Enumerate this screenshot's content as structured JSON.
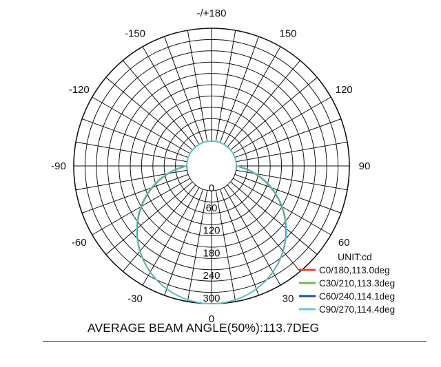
{
  "chart_data": {
    "type": "polar",
    "unit_label": "UNIT:cd",
    "angle_labels": [
      "-/+180",
      "-150",
      "150",
      "-120",
      "120",
      "-90",
      "90",
      "-60",
      "60",
      "-30",
      "30",
      "0"
    ],
    "radial_ticks": [
      0,
      60,
      120,
      180,
      240,
      300
    ],
    "rlim": [
      0,
      300
    ],
    "grid": true,
    "legend_position": "bottom-right",
    "series": [
      {
        "name": "C0/180,113.0deg",
        "color": "#e8403a",
        "beam_angle": 113.0,
        "peak_cd": 300
      },
      {
        "name": "C30/210,113.3deg",
        "color": "#6bbf3a",
        "beam_angle": 113.3,
        "peak_cd": 300
      },
      {
        "name": "C60/240,114.1deg",
        "color": "#1f4fa0",
        "beam_angle": 114.1,
        "peak_cd": 300
      },
      {
        "name": "C90/270,114.4deg",
        "color": "#5cc9d6",
        "beam_angle": 114.4,
        "peak_cd": 300
      }
    ]
  },
  "summary": "AVERAGE BEAM ANGLE(50%):113.7DEG"
}
